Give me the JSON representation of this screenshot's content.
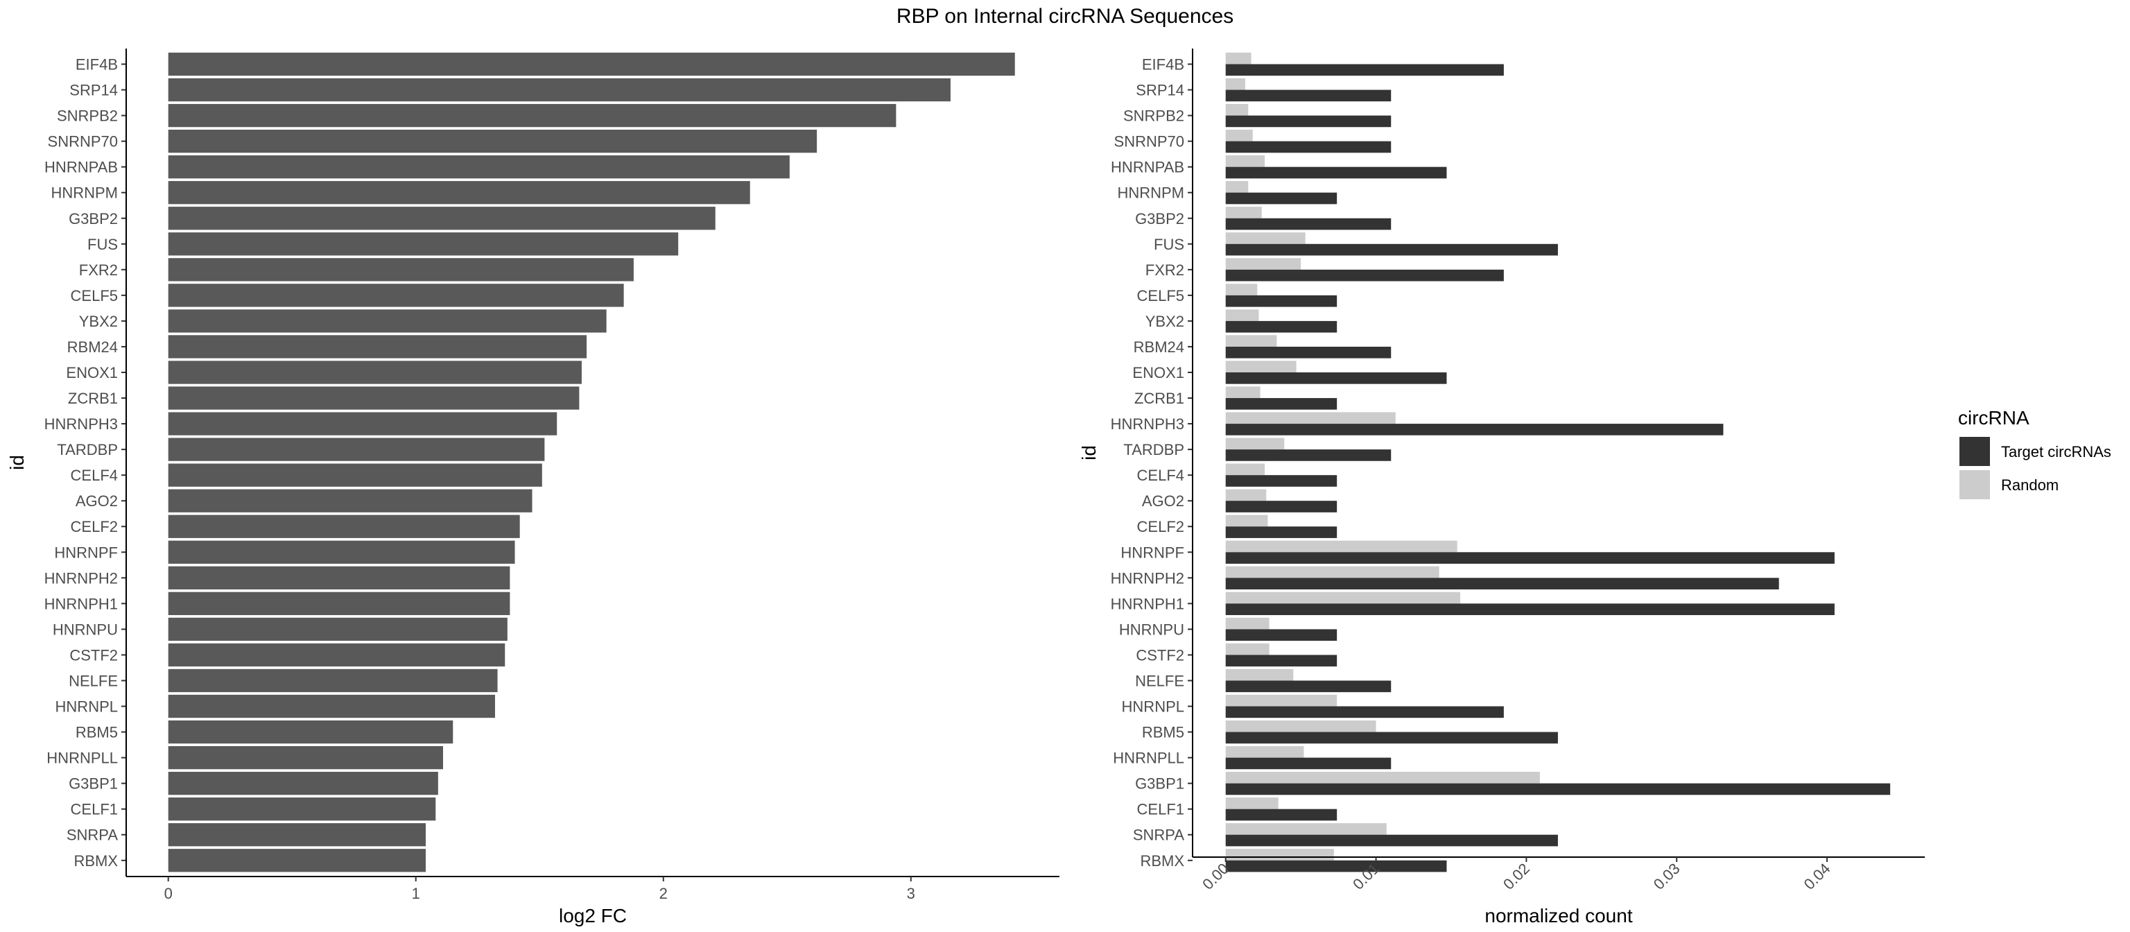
{
  "title": "RBP on Internal circRNA Sequences",
  "chart_data": [
    {
      "type": "bar",
      "orientation": "horizontal",
      "xlabel": "log2 FC",
      "ylabel": "id",
      "xlim": [
        -0.17,
        3.6
      ],
      "xticks": [
        "0",
        "1",
        "2",
        "3"
      ],
      "categories": [
        "EIF4B",
        "SRP14",
        "SNRPB2",
        "SNRNP70",
        "HNRNPAB",
        "HNRNPM",
        "G3BP2",
        "FUS",
        "FXR2",
        "CELF5",
        "YBX2",
        "RBM24",
        "ENOX1",
        "ZCRB1",
        "HNRNPH3",
        "TARDBP",
        "CELF4",
        "AGO2",
        "CELF2",
        "HNRNPF",
        "HNRNPH2",
        "HNRNPH1",
        "HNRNPU",
        "CSTF2",
        "NELFE",
        "HNRNPL",
        "RBM5",
        "HNRNPLL",
        "G3BP1",
        "CELF1",
        "SNRPA",
        "RBMX"
      ],
      "values": [
        3.42,
        3.16,
        2.94,
        2.62,
        2.51,
        2.35,
        2.21,
        2.06,
        1.88,
        1.84,
        1.77,
        1.69,
        1.67,
        1.66,
        1.57,
        1.52,
        1.51,
        1.47,
        1.42,
        1.4,
        1.38,
        1.38,
        1.37,
        1.36,
        1.33,
        1.32,
        1.15,
        1.11,
        1.09,
        1.08,
        1.04,
        1.04
      ],
      "grid": false,
      "color": "#595959"
    },
    {
      "type": "bar",
      "orientation": "horizontal",
      "grouped": true,
      "xlabel": "normalized count",
      "ylabel": "id",
      "xlim": [
        -0.0022,
        0.0465
      ],
      "xticks": [
        "0.00",
        "0.01",
        "0.02",
        "0.03",
        "0.04"
      ],
      "categories": [
        "EIF4B",
        "SRP14",
        "SNRPB2",
        "SNRNP70",
        "HNRNPAB",
        "HNRNPM",
        "G3BP2",
        "FUS",
        "FXR2",
        "CELF5",
        "YBX2",
        "RBM24",
        "ENOX1",
        "ZCRB1",
        "HNRNPH3",
        "TARDBP",
        "CELF4",
        "AGO2",
        "CELF2",
        "HNRNPF",
        "HNRNPH2",
        "HNRNPH1",
        "HNRNPU",
        "CSTF2",
        "NELFE",
        "HNRNPL",
        "RBM5",
        "HNRNPLL",
        "G3BP1",
        "CELF1",
        "SNRPA",
        "RBMX"
      ],
      "series": [
        {
          "name": "Target circRNAs",
          "color": "#333333",
          "values": [
            0.0185,
            0.011,
            0.011,
            0.011,
            0.0147,
            0.0074,
            0.011,
            0.0221,
            0.0185,
            0.0074,
            0.0074,
            0.011,
            0.0147,
            0.0074,
            0.0331,
            0.011,
            0.0074,
            0.0074,
            0.0074,
            0.0405,
            0.0368,
            0.0405,
            0.0074,
            0.0074,
            0.011,
            0.0185,
            0.0221,
            0.011,
            0.0442,
            0.0074,
            0.0221,
            0.0147
          ]
        },
        {
          "name": "Random",
          "color": "#cccccc",
          "values": [
            0.0017,
            0.0013,
            0.0015,
            0.0018,
            0.0026,
            0.0015,
            0.0024,
            0.0053,
            0.005,
            0.0021,
            0.0022,
            0.0034,
            0.0047,
            0.0023,
            0.0113,
            0.0039,
            0.0026,
            0.0027,
            0.0028,
            0.0154,
            0.0142,
            0.0156,
            0.0029,
            0.0029,
            0.0045,
            0.0074,
            0.01,
            0.0052,
            0.0209,
            0.0035,
            0.0107,
            0.0072
          ]
        }
      ],
      "grid": false,
      "legend": {
        "title": "circRNA",
        "placement": "right"
      }
    }
  ]
}
